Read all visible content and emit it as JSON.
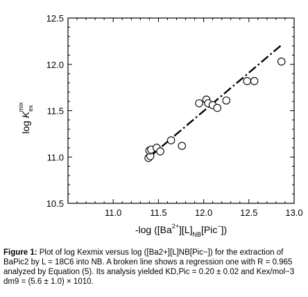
{
  "chart_data": {
    "type": "scatter",
    "xlim": [
      10.5,
      13.0
    ],
    "ylim": [
      10.5,
      12.5
    ],
    "x_ticks": [
      11.0,
      11.5,
      12.0,
      12.5,
      13.0
    ],
    "y_ticks": [
      10.5,
      11.0,
      11.5,
      12.0,
      12.5
    ],
    "x_tick_labels": [
      "11.0",
      "11.5",
      "12.0",
      "12.5",
      "13.0"
    ],
    "y_tick_labels": [
      "10.5",
      "11.0",
      "11.5",
      "12.0",
      "12.5"
    ],
    "xlabel": {
      "prefix": "-log ([Ba",
      "sup": "2+",
      "mid": "][L]",
      "sub": "NB",
      "tail": "[Pic",
      "sup2": "−",
      "end": "])"
    },
    "ylabel": {
      "prefix": "log ",
      "k": "K",
      "sub": "ex",
      "sup": "mix"
    },
    "points": [
      {
        "x": 11.39,
        "y": 10.99
      },
      {
        "x": 11.41,
        "y": 11.01
      },
      {
        "x": 11.4,
        "y": 11.07
      },
      {
        "x": 11.42,
        "y": 11.08
      },
      {
        "x": 11.48,
        "y": 11.1
      },
      {
        "x": 11.52,
        "y": 11.06
      },
      {
        "x": 11.64,
        "y": 11.18
      },
      {
        "x": 11.76,
        "y": 11.12
      },
      {
        "x": 11.95,
        "y": 11.58
      },
      {
        "x": 12.03,
        "y": 11.62
      },
      {
        "x": 12.05,
        "y": 11.58
      },
      {
        "x": 12.1,
        "y": 11.56
      },
      {
        "x": 12.15,
        "y": 11.53
      },
      {
        "x": 12.25,
        "y": 11.61
      },
      {
        "x": 12.48,
        "y": 11.82
      },
      {
        "x": 12.56,
        "y": 11.82
      },
      {
        "x": 12.86,
        "y": 12.03
      }
    ],
    "regression_line": {
      "style": "dash-dot",
      "x": [
        11.4,
        12.85
      ],
      "y": [
        11.0,
        12.2
      ]
    },
    "marker": "open-circle",
    "grid": false
  },
  "caption": {
    "label": "Figure 1:",
    "text": " Plot of log Kexmix versus log ([Ba2+][L]NB[Pic−]) for the extraction of BaPic2 by L = 18C6 into NB. A broken line shows a regression one with R = 0.965 analyzed by Equation (5). Its analysis yielded KD,Pic = 0.20 ± 0.02 and Kex/mol−3 dm9 = (5.6 ± 1.0) × 1010."
  }
}
